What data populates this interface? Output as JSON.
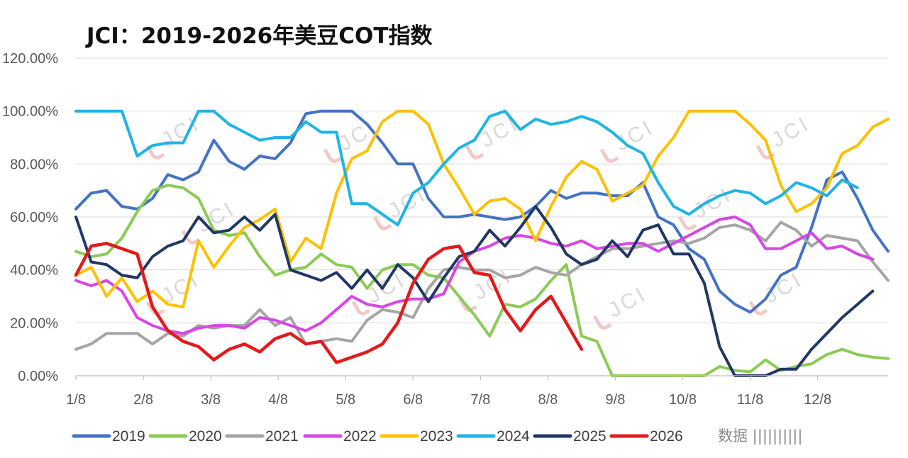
{
  "chart_data": {
    "type": "line",
    "title": "JCI：2019-2026年美豆COT指数",
    "xlabel": "",
    "ylabel": "",
    "ylim": [
      0,
      1.2
    ],
    "y_ticks": [
      "0.00%",
      "20.00%",
      "40.00%",
      "60.00%",
      "80.00%",
      "100.00%",
      "120.00%"
    ],
    "x_ticks": [
      "1/8",
      "2/8",
      "3/8",
      "4/8",
      "5/8",
      "6/8",
      "7/8",
      "8/8",
      "9/8",
      "10/8",
      "11/8",
      "12/8"
    ],
    "grid": true,
    "legend_position": "bottom",
    "watermark": "JCI",
    "series": [
      {
        "name": "2019",
        "color": "#4472C4",
        "values": [
          0.63,
          0.69,
          0.7,
          0.64,
          0.63,
          0.67,
          0.76,
          0.74,
          0.77,
          0.89,
          0.81,
          0.78,
          0.83,
          0.82,
          0.88,
          0.99,
          1.0,
          1.0,
          1.0,
          0.95,
          0.88,
          0.8,
          0.8,
          0.67,
          0.6,
          0.6,
          0.61,
          0.6,
          0.59,
          0.6,
          0.64,
          0.7,
          0.67,
          0.69,
          0.69,
          0.68,
          0.68,
          0.73,
          0.6,
          0.57,
          0.48,
          0.44,
          0.32,
          0.27,
          0.24,
          0.29,
          0.38,
          0.41,
          0.56,
          0.74,
          0.77,
          0.67,
          0.55,
          0.47
        ]
      },
      {
        "name": "2020",
        "color": "#8BCB54",
        "values": [
          0.47,
          0.45,
          0.46,
          0.52,
          0.62,
          0.7,
          0.72,
          0.71,
          0.67,
          0.55,
          0.53,
          0.54,
          0.45,
          0.38,
          0.4,
          0.41,
          0.46,
          0.42,
          0.41,
          0.33,
          0.4,
          0.42,
          0.42,
          0.38,
          0.37,
          0.3,
          0.23,
          0.15,
          0.27,
          0.26,
          0.29,
          0.36,
          0.42,
          0.15,
          0.13,
          0.0,
          0.0,
          0.0,
          0.0,
          0.0,
          0.0,
          0.0,
          0.035,
          0.02,
          0.015,
          0.06,
          0.02,
          0.035,
          0.045,
          0.08,
          0.1,
          0.08,
          0.07,
          0.065
        ]
      },
      {
        "name": "2021",
        "color": "#A5A5A5",
        "values": [
          0.1,
          0.12,
          0.16,
          0.16,
          0.16,
          0.12,
          0.16,
          0.15,
          0.19,
          0.18,
          0.19,
          0.19,
          0.25,
          0.19,
          0.22,
          0.12,
          0.13,
          0.14,
          0.13,
          0.21,
          0.25,
          0.24,
          0.22,
          0.33,
          0.4,
          0.41,
          0.4,
          0.4,
          0.37,
          0.38,
          0.41,
          0.39,
          0.38,
          0.42,
          0.45,
          0.48,
          0.48,
          0.49,
          0.5,
          0.51,
          0.5,
          0.52,
          0.56,
          0.57,
          0.55,
          0.51,
          0.58,
          0.55,
          0.49,
          0.53,
          0.52,
          0.51,
          0.43,
          0.36
        ]
      },
      {
        "name": "2022",
        "color": "#D846E6",
        "values": [
          0.36,
          0.34,
          0.36,
          0.32,
          0.22,
          0.19,
          0.17,
          0.16,
          0.18,
          0.19,
          0.19,
          0.18,
          0.22,
          0.21,
          0.19,
          0.17,
          0.2,
          0.25,
          0.3,
          0.27,
          0.26,
          0.28,
          0.29,
          0.29,
          0.31,
          0.43,
          0.47,
          0.49,
          0.52,
          0.53,
          0.52,
          0.5,
          0.49,
          0.51,
          0.48,
          0.49,
          0.5,
          0.5,
          0.47,
          0.5,
          0.53,
          0.56,
          0.59,
          0.6,
          0.57,
          0.48,
          0.48,
          0.51,
          0.54,
          0.48,
          0.49,
          0.46,
          0.44,
          null
        ]
      },
      {
        "name": "2023",
        "color": "#FFC000",
        "values": [
          0.38,
          0.41,
          0.3,
          0.37,
          0.28,
          0.32,
          0.27,
          0.26,
          0.51,
          0.41,
          0.49,
          0.56,
          0.59,
          0.63,
          0.43,
          0.52,
          0.48,
          0.69,
          0.82,
          0.85,
          0.96,
          1.0,
          1.0,
          0.95,
          0.8,
          0.71,
          0.61,
          0.66,
          0.67,
          0.63,
          0.51,
          0.64,
          0.75,
          0.81,
          0.78,
          0.66,
          0.69,
          0.72,
          0.83,
          0.9,
          1.0,
          1.0,
          1.0,
          1.0,
          0.95,
          0.89,
          0.72,
          0.62,
          0.65,
          0.71,
          0.84,
          0.87,
          0.94,
          0.97
        ]
      },
      {
        "name": "2024",
        "color": "#1FB4E6",
        "values": [
          1.0,
          1.0,
          1.0,
          1.0,
          0.83,
          0.87,
          0.88,
          0.88,
          1.0,
          1.0,
          0.95,
          0.92,
          0.89,
          0.9,
          0.9,
          0.96,
          0.92,
          0.92,
          0.65,
          0.65,
          0.61,
          0.57,
          0.69,
          0.73,
          0.8,
          0.86,
          0.89,
          0.98,
          1.0,
          0.93,
          0.97,
          0.95,
          0.96,
          0.98,
          0.96,
          0.92,
          0.87,
          0.84,
          0.73,
          0.64,
          0.61,
          0.65,
          0.68,
          0.7,
          0.69,
          0.65,
          0.68,
          0.73,
          0.71,
          0.68,
          0.74,
          0.71,
          null,
          null
        ]
      },
      {
        "name": "2025",
        "color": "#203864",
        "values": [
          0.6,
          0.43,
          0.42,
          0.38,
          0.37,
          0.45,
          0.49,
          0.51,
          0.6,
          0.54,
          0.55,
          0.6,
          0.55,
          0.61,
          0.4,
          0.38,
          0.36,
          0.39,
          0.33,
          0.4,
          0.33,
          0.42,
          0.37,
          0.28,
          0.37,
          0.45,
          0.47,
          0.55,
          0.49,
          0.56,
          0.64,
          0.56,
          0.46,
          0.42,
          0.44,
          0.51,
          0.45,
          0.55,
          0.57,
          0.46,
          0.46,
          0.35,
          0.11,
          0.0,
          0.0,
          0.0,
          0.025,
          0.025,
          0.1,
          0.16,
          0.22,
          0.27,
          0.32,
          null
        ]
      },
      {
        "name": "2026",
        "color": "#E31A1C",
        "values": [
          0.38,
          0.49,
          0.5,
          0.48,
          0.46,
          0.26,
          0.17,
          0.13,
          0.11,
          0.06,
          0.1,
          0.12,
          0.09,
          0.14,
          0.16,
          0.12,
          0.13,
          0.05,
          0.07,
          0.09,
          0.12,
          0.2,
          0.35,
          0.44,
          0.48,
          0.49,
          0.39,
          0.38,
          0.25,
          0.17,
          0.25,
          0.3,
          0.2,
          0.1,
          null,
          null,
          null,
          null,
          null,
          null,
          null,
          null,
          null,
          null,
          null,
          null,
          null,
          null,
          null,
          null,
          null,
          null,
          null,
          null
        ]
      }
    ]
  },
  "footer_mark": "数据 |||||||||| "
}
